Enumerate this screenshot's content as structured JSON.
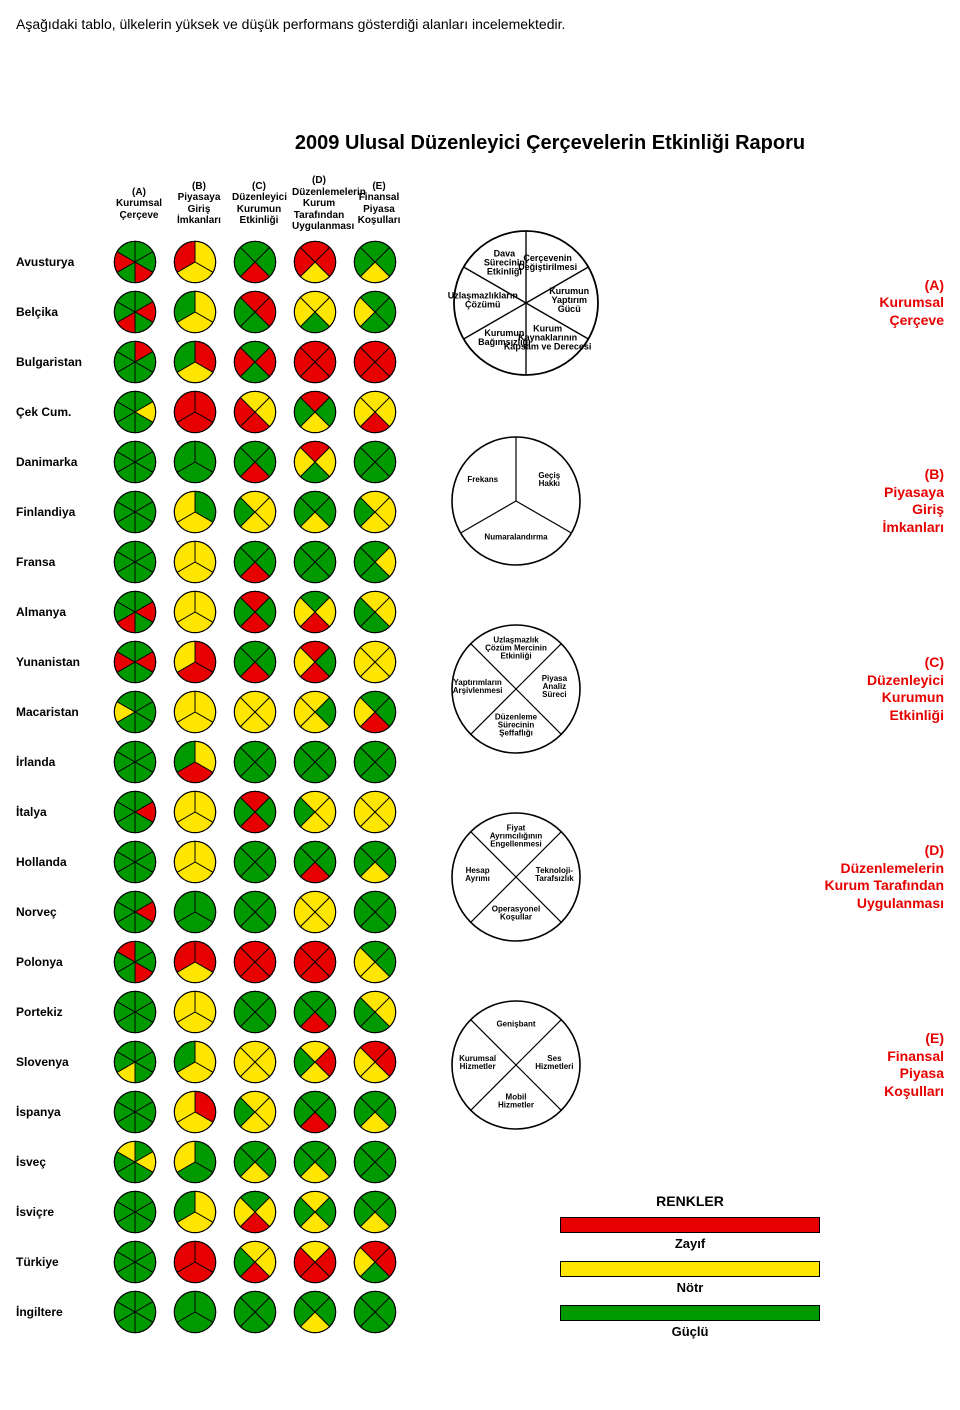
{
  "intro_text": "Aşağıdaki tablo, ülkelerin yüksek ve düşük performans gösterdiği alanları incelemektedir.",
  "report_title": "2009 Ulusal Düzenleyici Çerçevelerin Etkinliği Raporu",
  "colors": {
    "red": "#e60000",
    "yellow": "#ffe600",
    "green": "#009900",
    "outline": "#000000",
    "label_red": "#e60000",
    "bg": "#ffffff"
  },
  "columns": [
    {
      "id": "A",
      "label": "(A)\nKurumsal\nÇerçeve",
      "slices": 6
    },
    {
      "id": "B",
      "label": "(B)\nPiyasaya\nGiriş\nİmkanları",
      "slices": 3
    },
    {
      "id": "C",
      "label": "(C)\nDüzenleyici\nKurumun\nEtkinliği",
      "slices": 4
    },
    {
      "id": "D",
      "label": "(D)\nDüzenlemelerin\nKurum Tarafından\nUygulanması",
      "slices": 4
    },
    {
      "id": "E",
      "label": "(E)\nFinansal\nPiyasa\nKoşulları",
      "slices": 4
    }
  ],
  "rows": [
    {
      "country": "Avusturya",
      "cells": [
        [
          "green",
          "green",
          "red",
          "green",
          "red",
          "green"
        ],
        [
          "yellow",
          "yellow",
          "red"
        ],
        [
          "green",
          "red",
          "green",
          "green"
        ],
        [
          "red",
          "yellow",
          "red",
          "red"
        ],
        [
          "green",
          "yellow",
          "green",
          "green"
        ]
      ]
    },
    {
      "country": "Belçika",
      "cells": [
        [
          "green",
          "red",
          "green",
          "red",
          "green",
          "green"
        ],
        [
          "yellow",
          "yellow",
          "green"
        ],
        [
          "red",
          "green",
          "green",
          "red"
        ],
        [
          "yellow",
          "green",
          "yellow",
          "yellow"
        ],
        [
          "green",
          "green",
          "yellow",
          "green"
        ]
      ]
    },
    {
      "country": "Bulgaristan",
      "cells": [
        [
          "red",
          "green",
          "green",
          "green",
          "green",
          "green"
        ],
        [
          "red",
          "yellow",
          "green"
        ],
        [
          "red",
          "green",
          "red",
          "green"
        ],
        [
          "red",
          "red",
          "red",
          "red"
        ],
        [
          "red",
          "red",
          "red",
          "red"
        ]
      ]
    },
    {
      "country": "Çek Cum.",
      "cells": [
        [
          "green",
          "yellow",
          "green",
          "green",
          "green",
          "green"
        ],
        [
          "red",
          "red",
          "red"
        ],
        [
          "yellow",
          "red",
          "red",
          "yellow"
        ],
        [
          "green",
          "yellow",
          "green",
          "red"
        ],
        [
          "yellow",
          "red",
          "yellow",
          "yellow"
        ]
      ]
    },
    {
      "country": "Danimarka",
      "cells": [
        [
          "green",
          "green",
          "green",
          "green",
          "green",
          "green"
        ],
        [
          "green",
          "green",
          "green"
        ],
        [
          "green",
          "red",
          "green",
          "green"
        ],
        [
          "yellow",
          "green",
          "yellow",
          "red"
        ],
        [
          "green",
          "green",
          "green",
          "green"
        ]
      ]
    },
    {
      "country": "Finlandiya",
      "cells": [
        [
          "green",
          "green",
          "green",
          "green",
          "green",
          "green"
        ],
        [
          "green",
          "yellow",
          "yellow"
        ],
        [
          "yellow",
          "yellow",
          "green",
          "yellow"
        ],
        [
          "green",
          "yellow",
          "green",
          "green"
        ],
        [
          "yellow",
          "yellow",
          "green",
          "yellow"
        ]
      ]
    },
    {
      "country": "Fransa",
      "cells": [
        [
          "green",
          "green",
          "green",
          "green",
          "green",
          "green"
        ],
        [
          "yellow",
          "yellow",
          "yellow"
        ],
        [
          "green",
          "red",
          "green",
          "green"
        ],
        [
          "green",
          "green",
          "green",
          "green"
        ],
        [
          "yellow",
          "green",
          "green",
          "green"
        ]
      ]
    },
    {
      "country": "Almanya",
      "cells": [
        [
          "green",
          "red",
          "green",
          "red",
          "green",
          "green"
        ],
        [
          "yellow",
          "yellow",
          "yellow"
        ],
        [
          "green",
          "red",
          "green",
          "red"
        ],
        [
          "yellow",
          "red",
          "yellow",
          "green"
        ],
        [
          "yellow",
          "green",
          "green",
          "yellow"
        ]
      ]
    },
    {
      "country": "Yunanistan",
      "cells": [
        [
          "green",
          "red",
          "green",
          "green",
          "red",
          "green"
        ],
        [
          "red",
          "red",
          "yellow"
        ],
        [
          "green",
          "red",
          "green",
          "green"
        ],
        [
          "green",
          "red",
          "yellow",
          "red"
        ],
        [
          "yellow",
          "yellow",
          "yellow",
          "yellow"
        ]
      ]
    },
    {
      "country": "Macaristan",
      "cells": [
        [
          "green",
          "green",
          "green",
          "green",
          "yellow",
          "green"
        ],
        [
          "yellow",
          "yellow",
          "yellow"
        ],
        [
          "yellow",
          "yellow",
          "yellow",
          "yellow"
        ],
        [
          "green",
          "yellow",
          "yellow",
          "yellow"
        ],
        [
          "green",
          "red",
          "yellow",
          "green"
        ]
      ]
    },
    {
      "country": "İrlanda",
      "cells": [
        [
          "green",
          "green",
          "green",
          "green",
          "green",
          "green"
        ],
        [
          "yellow",
          "red",
          "green"
        ],
        [
          "green",
          "green",
          "green",
          "green"
        ],
        [
          "green",
          "green",
          "green",
          "green"
        ],
        [
          "green",
          "green",
          "green",
          "green"
        ]
      ]
    },
    {
      "country": "İtalya",
      "cells": [
        [
          "green",
          "red",
          "green",
          "green",
          "green",
          "green"
        ],
        [
          "yellow",
          "yellow",
          "yellow"
        ],
        [
          "green",
          "red",
          "green",
          "red"
        ],
        [
          "yellow",
          "yellow",
          "green",
          "yellow"
        ],
        [
          "yellow",
          "yellow",
          "yellow",
          "yellow"
        ]
      ]
    },
    {
      "country": "Hollanda",
      "cells": [
        [
          "green",
          "green",
          "green",
          "green",
          "green",
          "green"
        ],
        [
          "yellow",
          "yellow",
          "yellow"
        ],
        [
          "green",
          "green",
          "green",
          "green"
        ],
        [
          "green",
          "red",
          "green",
          "green"
        ],
        [
          "green",
          "yellow",
          "green",
          "green"
        ]
      ]
    },
    {
      "country": "Norveç",
      "cells": [
        [
          "green",
          "red",
          "green",
          "green",
          "green",
          "green"
        ],
        [
          "green",
          "green",
          "green"
        ],
        [
          "green",
          "green",
          "green",
          "green"
        ],
        [
          "yellow",
          "yellow",
          "yellow",
          "yellow"
        ],
        [
          "green",
          "green",
          "green",
          "green"
        ]
      ]
    },
    {
      "country": "Polonya",
      "cells": [
        [
          "green",
          "green",
          "red",
          "green",
          "green",
          "red"
        ],
        [
          "red",
          "yellow",
          "red"
        ],
        [
          "red",
          "red",
          "red",
          "red"
        ],
        [
          "red",
          "red",
          "red",
          "red"
        ],
        [
          "green",
          "yellow",
          "yellow",
          "green"
        ]
      ]
    },
    {
      "country": "Portekiz",
      "cells": [
        [
          "green",
          "green",
          "green",
          "green",
          "green",
          "green"
        ],
        [
          "yellow",
          "yellow",
          "yellow"
        ],
        [
          "green",
          "green",
          "green",
          "green"
        ],
        [
          "green",
          "red",
          "green",
          "green"
        ],
        [
          "yellow",
          "green",
          "green",
          "yellow"
        ]
      ]
    },
    {
      "country": "Slovenya",
      "cells": [
        [
          "green",
          "green",
          "green",
          "yellow",
          "green",
          "green"
        ],
        [
          "yellow",
          "yellow",
          "green"
        ],
        [
          "yellow",
          "yellow",
          "yellow",
          "yellow"
        ],
        [
          "red",
          "yellow",
          "green",
          "yellow"
        ],
        [
          "red",
          "yellow",
          "yellow",
          "red"
        ]
      ]
    },
    {
      "country": "İspanya",
      "cells": [
        [
          "green",
          "green",
          "green",
          "green",
          "green",
          "green"
        ],
        [
          "red",
          "yellow",
          "yellow"
        ],
        [
          "yellow",
          "yellow",
          "green",
          "yellow"
        ],
        [
          "green",
          "red",
          "green",
          "green"
        ],
        [
          "green",
          "yellow",
          "green",
          "green"
        ]
      ]
    },
    {
      "country": "İsveç",
      "cells": [
        [
          "green",
          "yellow",
          "green",
          "green",
          "green",
          "yellow"
        ],
        [
          "green",
          "green",
          "yellow"
        ],
        [
          "green",
          "yellow",
          "green",
          "green"
        ],
        [
          "green",
          "yellow",
          "green",
          "green"
        ],
        [
          "green",
          "green",
          "green",
          "green"
        ]
      ]
    },
    {
      "country": "İsviçre",
      "cells": [
        [
          "green",
          "green",
          "green",
          "green",
          "green",
          "green"
        ],
        [
          "yellow",
          "yellow",
          "green"
        ],
        [
          "yellow",
          "red",
          "yellow",
          "green"
        ],
        [
          "green",
          "yellow",
          "green",
          "yellow"
        ],
        [
          "green",
          "yellow",
          "green",
          "green"
        ]
      ]
    },
    {
      "country": "Türkiye",
      "cells": [
        [
          "green",
          "green",
          "green",
          "green",
          "green",
          "green"
        ],
        [
          "red",
          "red",
          "red"
        ],
        [
          "yellow",
          "red",
          "green",
          "yellow"
        ],
        [
          "red",
          "red",
          "red",
          "yellow"
        ],
        [
          "red",
          "green",
          "yellow",
          "red"
        ]
      ]
    },
    {
      "country": "İngiltere",
      "cells": [
        [
          "green",
          "green",
          "green",
          "green",
          "green",
          "green"
        ],
        [
          "green",
          "green",
          "green"
        ],
        [
          "green",
          "green",
          "green",
          "green"
        ],
        [
          "green",
          "yellow",
          "green",
          "green"
        ],
        [
          "green",
          "green",
          "green",
          "green"
        ]
      ]
    }
  ],
  "legend_items": [
    {
      "id": "A",
      "title": "(A)\nKurumsal\nÇerçeve",
      "slices": 6,
      "labels": [
        "Çerçevenin\nDeğiştirilmesi",
        "Kurumun\nYaptırım\nGücü",
        "Kurum\nKaynaklarının\nKapsam ve Derecesi",
        "Kurumun\nBağımsızlığı",
        "Uzlaşmazlıkların\nÇözümü",
        "Dava\nSürecinin\nEtkinliği"
      ]
    },
    {
      "id": "B",
      "title": "(B)\nPiyasaya\nGiriş\nİmkanları",
      "slices": 3,
      "labels": [
        "Geçiş\nHakkı",
        "Numaralandırma",
        "Frekans"
      ]
    },
    {
      "id": "C",
      "title": "(C)\nDüzenleyici\nKurumun\nEtkinliği",
      "slices": 4,
      "labels": [
        "Piyasa\nAnaliz\nSüreci",
        "Düzenleme\nSürecinin\nŞeffaflığı",
        "Yaptırımların\nArşivlenmesi",
        "Uzlaşmazlık\nÇözüm Mercinin\nEtkinliği"
      ]
    },
    {
      "id": "D",
      "title": "(D)\nDüzenlemelerin\nKurum Tarafından\nUygulanması",
      "slices": 4,
      "labels": [
        "Teknoloji-\nTarafsızlık",
        "Operasyonel\nKoşullar",
        "Hesap\nAyrımı",
        "Fiyat\nAyrımcılığının\nEngellenmesi"
      ]
    },
    {
      "id": "E",
      "title": "(E)\nFinansal\nPiyasa\nKoşulları",
      "slices": 4,
      "labels": [
        "Ses\nHizmetleri",
        "Mobil\nHizmetler",
        "Kurumsal\nHizmetler",
        "Genişbant"
      ]
    }
  ],
  "color_key": {
    "title": "RENKLER",
    "items": [
      {
        "color": "red",
        "label": "Zayıf"
      },
      {
        "color": "yellow",
        "label": "Nötr"
      },
      {
        "color": "green",
        "label": "Güçlü"
      }
    ]
  }
}
